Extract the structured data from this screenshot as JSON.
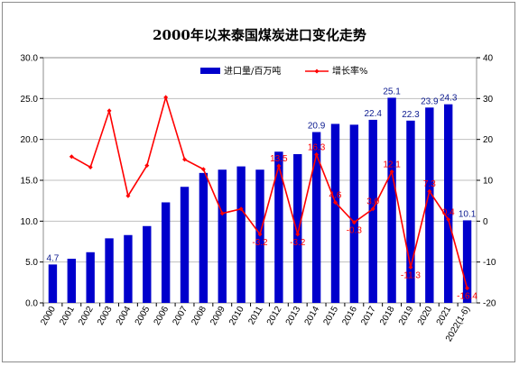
{
  "chart_data": {
    "type": "bar",
    "title": "2000年以来泰国煤炭进口变化走势",
    "categories": [
      "2000",
      "2001",
      "2002",
      "2003",
      "2004",
      "2005",
      "2006",
      "2007",
      "2008",
      "2009",
      "2010",
      "2011",
      "2012",
      "2013",
      "2014",
      "2015",
      "2016",
      "2017",
      "2018",
      "2019",
      "2020",
      "2021",
      "2022(1-6)"
    ],
    "ylim": [
      0,
      30
    ],
    "y2lim": [
      -20,
      40
    ],
    "yticks": [
      "0.0",
      "5.0",
      "10.0",
      "15.0",
      "20.0",
      "25.0",
      "30.0"
    ],
    "y2ticks": [
      "-20",
      "-10",
      "0",
      "10",
      "20",
      "30",
      "40"
    ],
    "legend_position": "top",
    "grid": true,
    "series": [
      {
        "name": "进口量/百万吨",
        "type": "bar",
        "axis": "left",
        "color": "#0000cc",
        "values": [
          4.7,
          5.4,
          6.2,
          7.9,
          8.3,
          9.4,
          12.3,
          14.2,
          15.9,
          16.3,
          16.7,
          16.3,
          18.5,
          18.2,
          20.9,
          21.9,
          21.8,
          22.4,
          25.1,
          22.3,
          23.9,
          24.3,
          10.1
        ],
        "labels": [
          "4.7",
          "",
          "",
          "",
          "",
          "",
          "",
          "",
          "",
          "",
          "",
          "",
          "",
          "",
          "20.9",
          "",
          "",
          "22.4",
          "25.1",
          "22.3",
          "23.9",
          "24.3",
          "10.1"
        ]
      },
      {
        "name": "增长率%",
        "type": "line",
        "axis": "right",
        "color": "#ff0000",
        "values": [
          null,
          15.8,
          13.2,
          27,
          6.2,
          13.6,
          30.3,
          15.1,
          12.7,
          1.9,
          3,
          -3.2,
          13.5,
          -3.2,
          16.3,
          4.6,
          -0.3,
          3,
          12.1,
          -11.3,
          7.3,
          0.4,
          -16.4
        ],
        "labels": [
          "",
          "",
          "",
          "",
          "",
          "",
          "",
          "",
          "",
          "",
          "",
          "-3.2",
          "13.5",
          "-3.2",
          "16.3",
          "4.6",
          "-0.3",
          "3.0",
          "12.1",
          "-11.3",
          "7.3",
          "0.4",
          "-16.4"
        ]
      }
    ]
  }
}
